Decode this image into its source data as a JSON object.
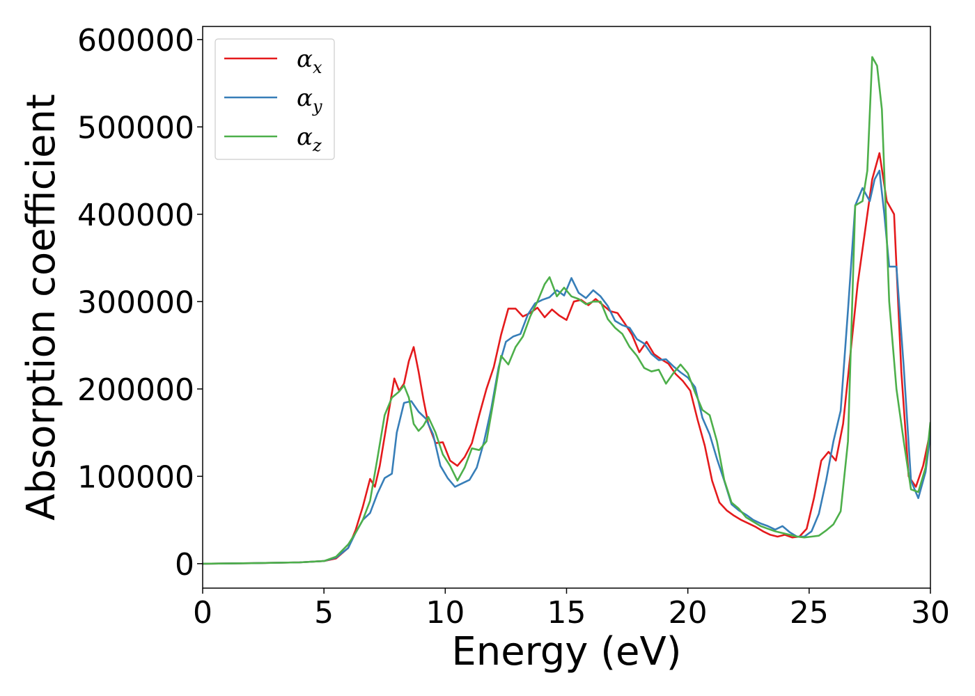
{
  "chart_data": {
    "type": "line",
    "title": "",
    "xlabel": "Energy (eV)",
    "ylabel": "Absorption coefficient",
    "xlim": [
      0,
      30
    ],
    "ylim": [
      -28000,
      615000
    ],
    "xticks": [
      0,
      5,
      10,
      15,
      20,
      25,
      30
    ],
    "yticks": [
      0,
      100000,
      200000,
      300000,
      400000,
      500000,
      600000
    ],
    "grid": false,
    "legend_position": "top-left",
    "series": [
      {
        "name": "α_x",
        "label_main": "α",
        "label_sub": "x",
        "color": "#e41a1c",
        "x": [
          0,
          2,
          4,
          5,
          5.5,
          6,
          6.3,
          6.6,
          6.9,
          7.1,
          7.3,
          7.6,
          7.9,
          8.1,
          8.3,
          8.5,
          8.7,
          8.9,
          9.1,
          9.3,
          9.6,
          9.9,
          10.2,
          10.5,
          10.8,
          11.1,
          11.4,
          11.7,
          12.0,
          12.3,
          12.6,
          12.9,
          13.2,
          13.5,
          13.8,
          14.1,
          14.4,
          14.7,
          15.0,
          15.3,
          15.6,
          15.9,
          16.2,
          16.5,
          16.8,
          17.1,
          17.4,
          17.7,
          18.0,
          18.3,
          18.6,
          18.9,
          19.2,
          19.5,
          19.8,
          20.1,
          20.4,
          20.7,
          21.0,
          21.3,
          21.6,
          21.9,
          22.2,
          22.5,
          22.8,
          23.1,
          23.4,
          23.7,
          24.0,
          24.3,
          24.6,
          24.9,
          25.2,
          25.5,
          25.8,
          26.1,
          26.4,
          26.7,
          27.0,
          27.3,
          27.6,
          27.9,
          28.2,
          28.5,
          28.8,
          29.1,
          29.4,
          29.7,
          30.0
        ],
        "y": [
          0,
          500,
          1500,
          3000,
          6000,
          18000,
          38000,
          65000,
          97000,
          88000,
          112000,
          162000,
          212000,
          198000,
          206000,
          232000,
          248000,
          220000,
          188000,
          160000,
          138000,
          139000,
          118000,
          112000,
          122000,
          138000,
          170000,
          200000,
          225000,
          262000,
          292000,
          292000,
          283000,
          287000,
          293000,
          282000,
          291000,
          284000,
          279000,
          300000,
          302000,
          296000,
          303000,
          296000,
          289000,
          287000,
          275000,
          262000,
          242000,
          254000,
          240000,
          234000,
          229000,
          217000,
          209000,
          198000,
          165000,
          135000,
          95000,
          70000,
          61000,
          55000,
          50000,
          46000,
          42000,
          37000,
          33000,
          31000,
          33000,
          30000,
          31000,
          40000,
          75000,
          118000,
          128000,
          118000,
          160000,
          240000,
          320000,
          380000,
          440000,
          470000,
          415000,
          400000,
          220000,
          100000,
          88000,
          112000,
          152000
        ]
      },
      {
        "name": "α_y",
        "label_main": "α",
        "label_sub": "y",
        "color": "#377eb8",
        "x": [
          0,
          2,
          4,
          5,
          5.5,
          6,
          6.3,
          6.6,
          6.9,
          7.2,
          7.5,
          7.8,
          8.0,
          8.3,
          8.6,
          8.9,
          9.2,
          9.5,
          9.8,
          10.1,
          10.4,
          10.7,
          11.0,
          11.3,
          11.6,
          11.9,
          12.2,
          12.5,
          12.8,
          13.1,
          13.4,
          13.7,
          14.0,
          14.3,
          14.6,
          14.9,
          15.2,
          15.5,
          15.8,
          16.1,
          16.4,
          16.7,
          17.0,
          17.3,
          17.6,
          17.9,
          18.2,
          18.5,
          18.8,
          19.1,
          19.4,
          19.7,
          20.0,
          20.3,
          20.6,
          20.9,
          21.2,
          21.5,
          21.8,
          22.1,
          22.4,
          22.7,
          23.0,
          23.3,
          23.6,
          23.9,
          24.2,
          24.5,
          24.8,
          25.1,
          25.4,
          25.7,
          26.0,
          26.3,
          26.6,
          26.9,
          27.2,
          27.5,
          27.7,
          27.9,
          28.1,
          28.3,
          28.6,
          28.9,
          29.2,
          29.5,
          29.8,
          30.0
        ],
        "y": [
          0,
          500,
          1500,
          3000,
          7000,
          18000,
          35000,
          50000,
          58000,
          80000,
          98000,
          103000,
          150000,
          184000,
          186000,
          174000,
          166000,
          148000,
          112000,
          98000,
          88000,
          92000,
          96000,
          110000,
          140000,
          178000,
          225000,
          254000,
          260000,
          263000,
          285000,
          298000,
          302000,
          305000,
          313000,
          307000,
          327000,
          310000,
          304000,
          313000,
          306000,
          295000,
          278000,
          273000,
          270000,
          257000,
          252000,
          240000,
          233000,
          234000,
          226000,
          219000,
          213000,
          202000,
          167000,
          148000,
          120000,
          95000,
          68000,
          61000,
          56000,
          50000,
          46000,
          43000,
          39000,
          43000,
          36000,
          31000,
          31000,
          37000,
          57000,
          95000,
          140000,
          175000,
          290000,
          410000,
          430000,
          415000,
          440000,
          450000,
          400000,
          340000,
          340000,
          225000,
          95000,
          75000,
          105000,
          148000
        ]
      },
      {
        "name": "α_z",
        "label_main": "α",
        "label_sub": "z",
        "color": "#4daf4a",
        "x": [
          0,
          2,
          4,
          5,
          5.5,
          6,
          6.3,
          6.6,
          6.9,
          7.2,
          7.5,
          7.8,
          8.1,
          8.3,
          8.5,
          8.7,
          8.9,
          9.1,
          9.3,
          9.6,
          9.9,
          10.2,
          10.5,
          10.8,
          11.1,
          11.4,
          11.7,
          12.0,
          12.3,
          12.6,
          12.9,
          13.2,
          13.5,
          13.8,
          14.1,
          14.3,
          14.6,
          14.9,
          15.2,
          15.5,
          15.8,
          16.1,
          16.4,
          16.7,
          17.0,
          17.3,
          17.6,
          17.9,
          18.2,
          18.5,
          18.8,
          19.1,
          19.4,
          19.7,
          20.0,
          20.3,
          20.6,
          20.9,
          21.2,
          21.5,
          21.8,
          22.1,
          22.4,
          22.7,
          23.0,
          23.3,
          23.6,
          23.9,
          24.2,
          24.5,
          24.8,
          25.1,
          25.4,
          25.7,
          26.0,
          26.3,
          26.6,
          26.9,
          27.2,
          27.4,
          27.6,
          27.8,
          28.0,
          28.3,
          28.6,
          28.9,
          29.2,
          29.5,
          29.8,
          30.0
        ],
        "y": [
          0,
          500,
          1500,
          3000,
          8000,
          22000,
          35000,
          50000,
          72000,
          120000,
          170000,
          190000,
          197000,
          204000,
          190000,
          160000,
          152000,
          158000,
          168000,
          150000,
          125000,
          112000,
          95000,
          110000,
          132000,
          130000,
          140000,
          188000,
          238000,
          228000,
          248000,
          260000,
          283000,
          300000,
          320000,
          328000,
          306000,
          316000,
          306000,
          303000,
          297000,
          300000,
          300000,
          280000,
          270000,
          263000,
          248000,
          238000,
          224000,
          220000,
          222000,
          206000,
          218000,
          228000,
          218000,
          196000,
          176000,
          170000,
          140000,
          96000,
          70000,
          63000,
          53000,
          48000,
          43000,
          40000,
          37000,
          35000,
          33000,
          31000,
          30000,
          31000,
          32000,
          38000,
          45000,
          60000,
          140000,
          410000,
          415000,
          450000,
          580000,
          570000,
          520000,
          300000,
          200000,
          140000,
          85000,
          82000,
          110000,
          162000
        ]
      }
    ]
  }
}
